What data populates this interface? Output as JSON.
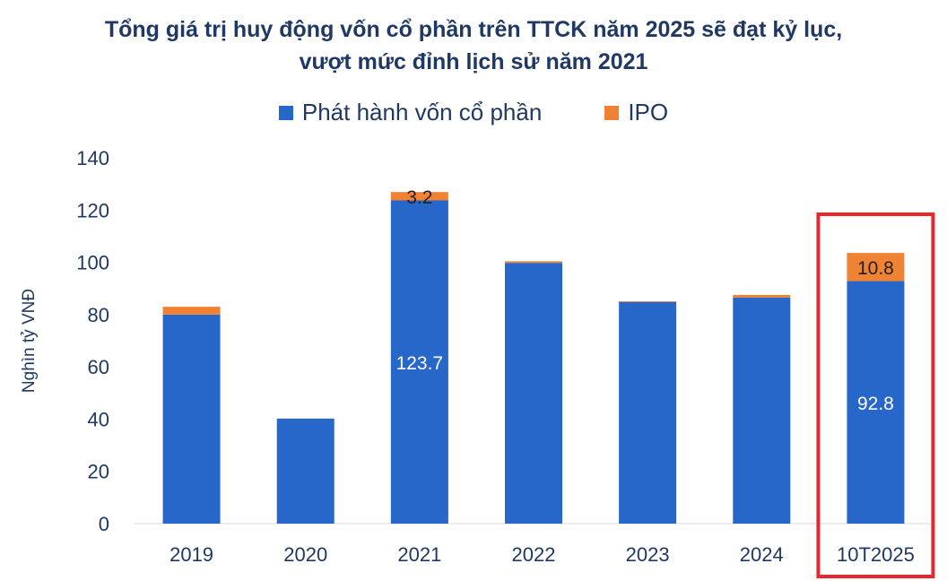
{
  "chart_data": {
    "type": "bar",
    "stacked": true,
    "title": "Tổng giá trị huy động vốn cổ phần trên TTCK năm 2025 sẽ đạt kỷ lục,",
    "title_line2": "vượt mức đỉnh lịch sử năm 2021",
    "ylabel": "Nghìn tỷ VNĐ",
    "xlabel": "",
    "ylim": [
      0,
      140
    ],
    "yticks": [
      "0",
      "20",
      "40",
      "60",
      "80",
      "100",
      "120",
      "140"
    ],
    "categories": [
      "2019",
      "2020",
      "2021",
      "2022",
      "2023",
      "2024",
      "10T2025"
    ],
    "series": [
      {
        "name": "Phát hành vốn cổ phần",
        "color": "#2767c9",
        "values": [
          80,
          40.2,
          123.7,
          99.8,
          84.8,
          86.5,
          92.8
        ],
        "labels": {
          "2": "123.7",
          "6": "92.8"
        }
      },
      {
        "name": "IPO",
        "color": "#f08234",
        "values": [
          3,
          0,
          3.2,
          0.6,
          0.3,
          1,
          10.8
        ],
        "labels": {
          "2": "3.2",
          "6": "10.8"
        }
      }
    ],
    "grid": false,
    "legend": "top",
    "highlight": {
      "category": "10T2025",
      "color": "#e8262b"
    }
  }
}
